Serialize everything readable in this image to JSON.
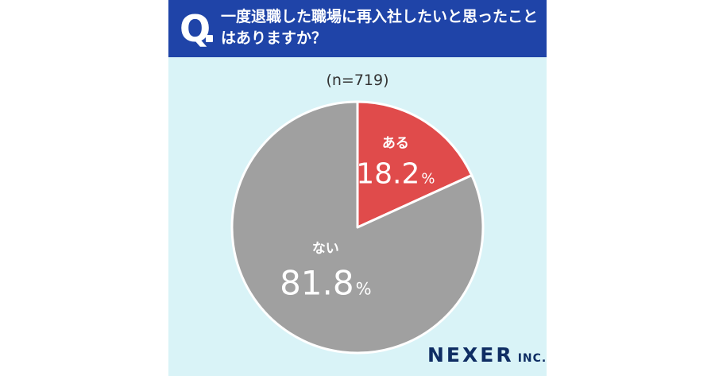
{
  "question": {
    "mark": "Q",
    "text": "一度退職した職場に再入社したいと思ったことはありますか？"
  },
  "sample_size": "(n=719)",
  "brand": {
    "name": "NEXER",
    "suffix": "INC."
  },
  "colors": {
    "header": "#1f44a8",
    "background": "#d9f3f7",
    "yes": "#e04b4b",
    "no": "#a0a0a0"
  },
  "chart_data": {
    "type": "pie",
    "title": "一度退職した職場に再入社したいと思ったことはありますか？",
    "slices": [
      {
        "label": "ある",
        "value": 18.2,
        "color": "#e04b4b"
      },
      {
        "label": "ない",
        "value": 81.8,
        "color": "#a0a0a0"
      }
    ],
    "unit": "%"
  }
}
